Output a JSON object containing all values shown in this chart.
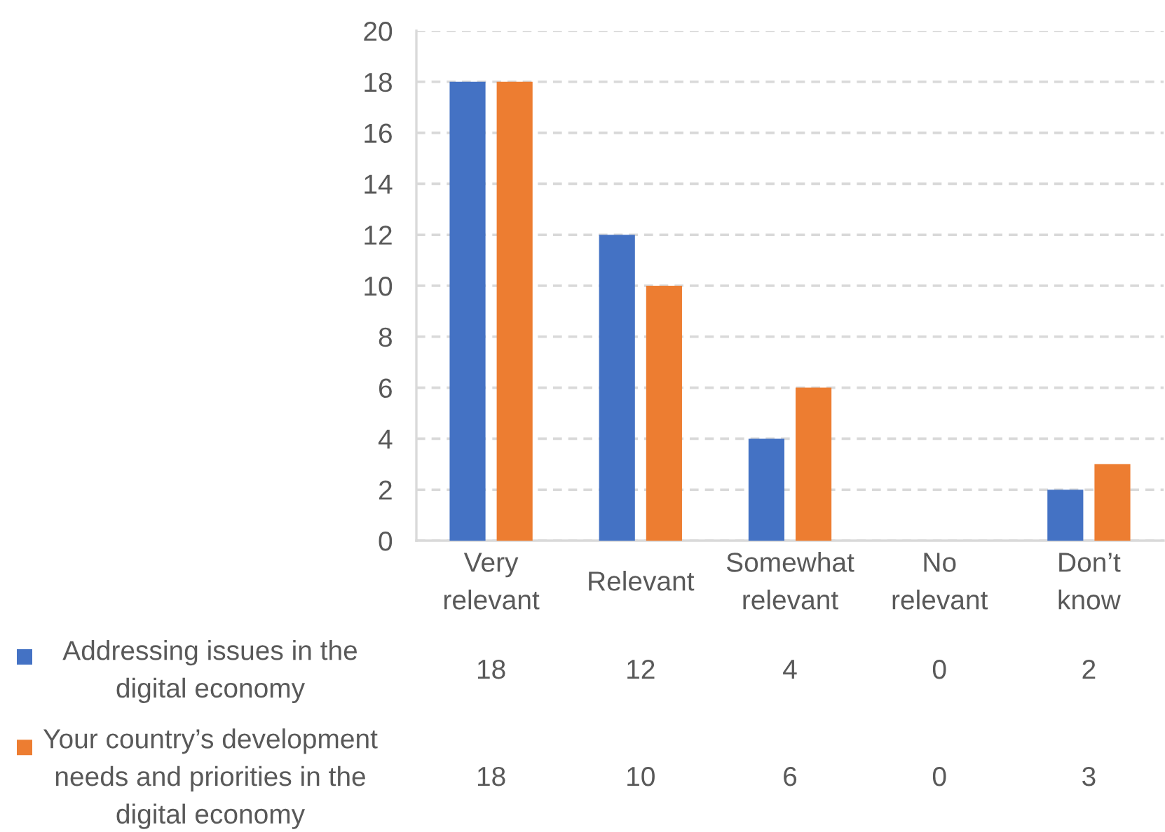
{
  "chart_data": {
    "type": "bar",
    "categories": [
      "Very\nrelevant",
      "Relevant",
      "Somewhat\nrelevant",
      "No\nrelevant",
      "Don’t\nknow"
    ],
    "series": [
      {
        "name": "Addressing issues in the\ndigital economy",
        "color": "#4472c4",
        "values": [
          18,
          12,
          4,
          0,
          2
        ]
      },
      {
        "name": "Your country’s development\nneeds and priorities in the\ndigital economy",
        "color": "#ed7d31",
        "values": [
          18,
          10,
          6,
          0,
          3
        ]
      }
    ],
    "ylim": [
      0,
      20
    ],
    "yticks": [
      0,
      2,
      4,
      6,
      8,
      10,
      12,
      14,
      16,
      18,
      20
    ],
    "grid": "y",
    "legend": "bottom left",
    "data_labels": true
  }
}
